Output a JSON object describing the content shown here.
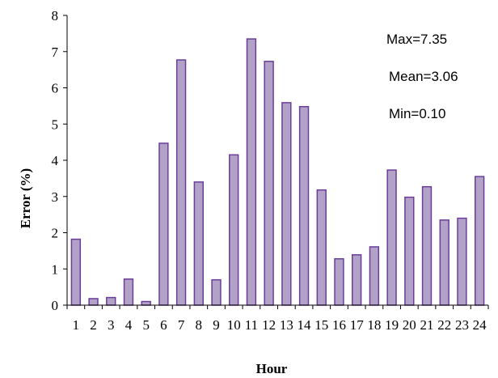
{
  "chart_data": {
    "type": "bar",
    "xlabel": "Hour",
    "ylabel": "Error (%)",
    "ylim": [
      0,
      8
    ],
    "yticks": [
      0,
      1,
      2,
      3,
      4,
      5,
      6,
      7,
      8
    ],
    "grid": false,
    "legend": "none",
    "bar_color": "#b3a2c7",
    "bar_edge_color": "#6a3d9a",
    "categories": [
      "1",
      "2",
      "3",
      "4",
      "5",
      "6",
      "7",
      "8",
      "9",
      "10",
      "11",
      "12",
      "13",
      "14",
      "15",
      "16",
      "17",
      "18",
      "19",
      "20",
      "21",
      "22",
      "23",
      "24"
    ],
    "values": [
      1.82,
      0.18,
      0.21,
      0.72,
      0.1,
      4.47,
      6.77,
      3.4,
      0.7,
      4.15,
      7.35,
      6.73,
      5.59,
      5.48,
      3.18,
      1.28,
      1.39,
      1.61,
      3.73,
      2.98,
      3.27,
      2.35,
      2.4,
      3.55
    ],
    "annotations": [
      "Max=7.35",
      "Mean=3.06",
      "Min=0.10"
    ]
  }
}
